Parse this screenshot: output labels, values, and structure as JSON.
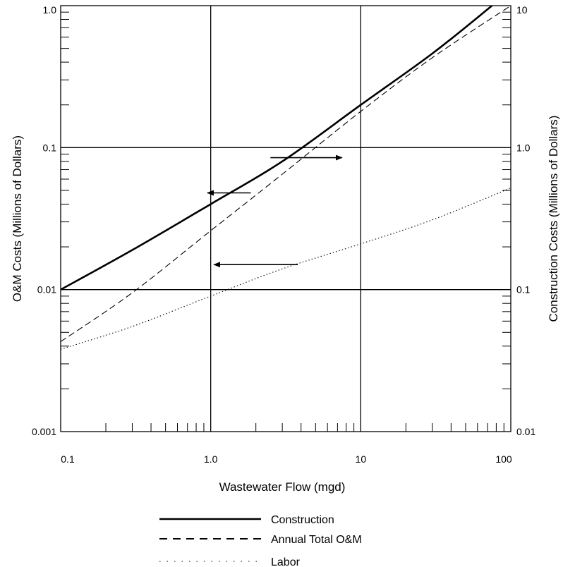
{
  "chart_data": {
    "type": "line",
    "xlabel": "Wastewater Flow (mgd)",
    "ylabel_left": "O&M Costs (Millions of Dollars)",
    "ylabel_right": "Construction Costs (Millions of Dollars)",
    "x_scale": "log",
    "y_scale": "log",
    "xlim": [
      0.1,
      100
    ],
    "ylim_left": [
      0.001,
      1.0
    ],
    "ylim_right": [
      0.01,
      10
    ],
    "x_ticklabels": [
      "0.1",
      "1.0",
      "10",
      "100"
    ],
    "y_left_ticklabels": [
      "0.001",
      "0.01",
      "0.1",
      "1.0"
    ],
    "y_right_ticklabels": [
      "0.01",
      "0.1",
      "1.0",
      "10"
    ],
    "grid": "major decades only",
    "legend_position": "bottom-center",
    "series": [
      {
        "name": "Construction",
        "style": "solid",
        "axis": "right",
        "x": [
          0.1,
          0.3,
          1.0,
          3.0,
          10,
          30,
          75
        ],
        "y": [
          0.1,
          0.19,
          0.4,
          0.8,
          2.0,
          4.6,
          10
        ]
      },
      {
        "name": "Annual Total O&M",
        "style": "dashed",
        "axis": "left",
        "x": [
          0.1,
          0.3,
          1.0,
          3.0,
          10,
          30,
          100
        ],
        "y": [
          0.0043,
          0.0095,
          0.026,
          0.065,
          0.18,
          0.43,
          1.0
        ]
      },
      {
        "name": "Labor",
        "style": "dotted",
        "axis": "left",
        "x": [
          0.1,
          0.3,
          1.0,
          3.0,
          10,
          30,
          100
        ],
        "y": [
          0.0038,
          0.0055,
          0.009,
          0.014,
          0.021,
          0.031,
          0.052
        ]
      }
    ],
    "annotations": [
      {
        "name": "arrow-to-right-axis",
        "direction": "right",
        "x_from": 2.5,
        "x_to": 7.5,
        "y_left": 0.085
      },
      {
        "name": "arrow-to-left-axis-upper",
        "direction": "left",
        "x_from": 1.85,
        "x_to": 0.95,
        "y_left": 0.048
      },
      {
        "name": "arrow-to-left-axis-lower",
        "direction": "left",
        "x_from": 3.8,
        "x_to": 1.05,
        "y_left": 0.015
      }
    ]
  }
}
